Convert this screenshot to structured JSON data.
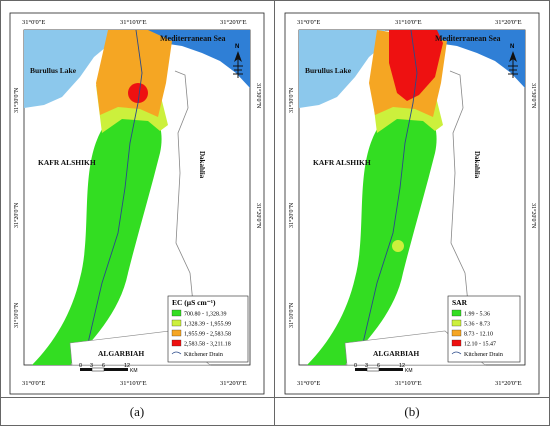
{
  "colors": {
    "sea": "#2f7fd6",
    "lake": "#8cc8ec",
    "class1": "#33dd22",
    "class2": "#ccf03c",
    "class3": "#f5a623",
    "class4": "#ee1111",
    "drain": "#2a4a8a"
  },
  "icons": [
    "north-arrow-icon"
  ],
  "panels": [
    {
      "caption": "(a)",
      "grid_top": [
        "31°0'0\"E",
        "31°10'0\"E",
        "31°20'0\"E"
      ],
      "grid_bottom": [
        "31°0'0\"E",
        "31°10'0\"E",
        "31°20'0\"E"
      ],
      "grid_left": [
        "31°30'0\"N",
        "31°20'0\"N",
        "31°10'0\"N"
      ],
      "grid_right": [
        "31°30'0\"N",
        "31°20'0\"N"
      ],
      "labels": {
        "sea": "Mediterranean Sea",
        "lake": "Burullus Lake",
        "west": "KAFR ALSHIKH",
        "east": "Dakahlia",
        "south": "ALGARBIAH",
        "north": "N"
      },
      "legend": {
        "title": "EC (µS cm⁻¹)",
        "items": [
          {
            "label": "700.80 - 1,328.39",
            "color": "#33dd22"
          },
          {
            "label": "1,328.39 - 1,955.99",
            "color": "#ccf03c"
          },
          {
            "label": "1,955.99 - 2,583.58",
            "color": "#f5a623"
          },
          {
            "label": "2,583.58 - 3,211.18",
            "color": "#ee1111"
          }
        ],
        "drain_label": "Kitchener Drain"
      },
      "scale": {
        "ticks": [
          "0",
          "3",
          "6",
          "12"
        ],
        "unit": "KM"
      }
    },
    {
      "caption": "(b)",
      "grid_top": [
        "31°0'0\"E",
        "31°10'0\"E",
        "31°20'0\"E"
      ],
      "grid_bottom": [
        "31°0'0\"E",
        "31°10'0\"E",
        "31°20'0\"E"
      ],
      "grid_left": [
        "31°30'0\"N",
        "31°20'0\"N",
        "31°10'0\"N"
      ],
      "grid_right": [
        "31°30'0\"N",
        "31°20'0\"N"
      ],
      "labels": {
        "sea": "Mediterranean Sea",
        "lake": "Burullus Lake",
        "west": "KAFR ALSHIKH",
        "east": "Dakahlia",
        "south": "ALGARBIAH",
        "north": "N"
      },
      "legend": {
        "title": "SAR",
        "items": [
          {
            "label": "1.99 - 5.36",
            "color": "#33dd22"
          },
          {
            "label": "5.36 - 8.73",
            "color": "#ccf03c"
          },
          {
            "label": "8.73 - 12.10",
            "color": "#f5a623"
          },
          {
            "label": "12.10 - 15.47",
            "color": "#ee1111"
          }
        ],
        "drain_label": "Kitchener Drain"
      },
      "scale": {
        "ticks": [
          "0",
          "3",
          "6",
          "12"
        ],
        "unit": "KM"
      }
    }
  ]
}
